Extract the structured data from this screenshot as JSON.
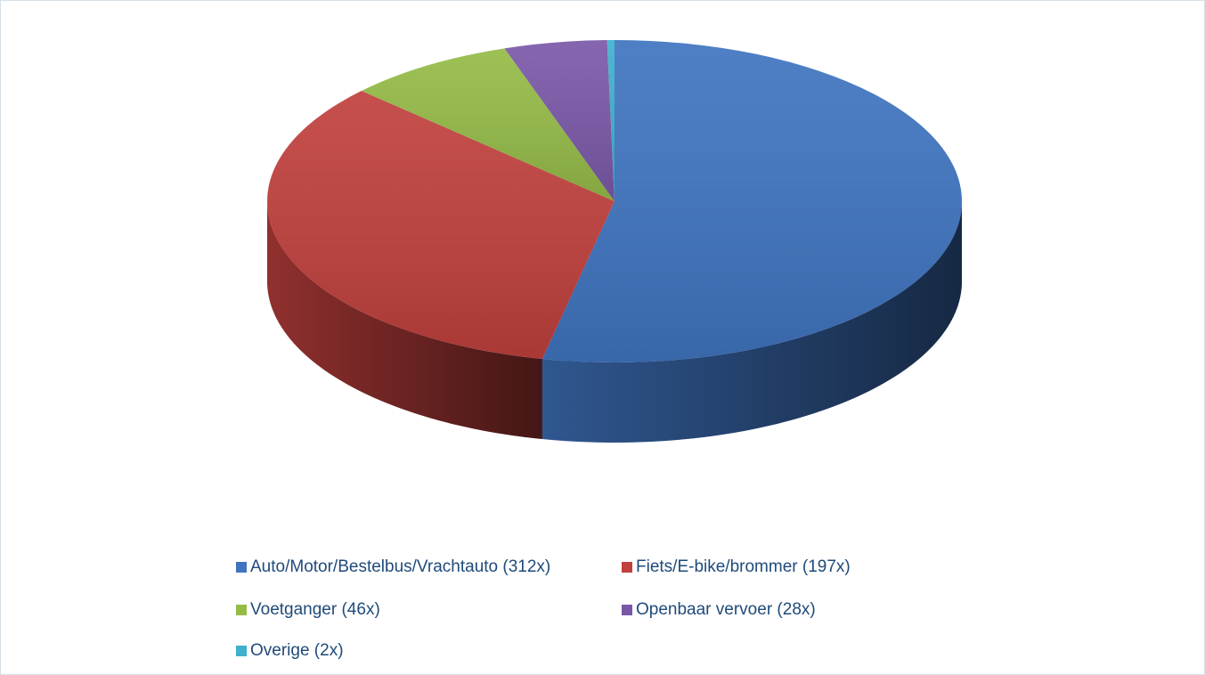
{
  "chart_data": {
    "type": "pie3d",
    "categories": [
      "Auto/Motor/Bestelbus/Vrachtauto (312x)",
      "Fiets/E-bike/brommer (197x)",
      "Voetganger (46x)",
      "Openbaar vervoer (28x)",
      "Overige (2x)"
    ],
    "values": [
      312,
      197,
      46,
      28,
      2
    ],
    "colors": [
      "#3f74c0",
      "#c0403d",
      "#95bb47",
      "#7a58a8",
      "#3fb0cf"
    ],
    "legend": "bottom"
  }
}
